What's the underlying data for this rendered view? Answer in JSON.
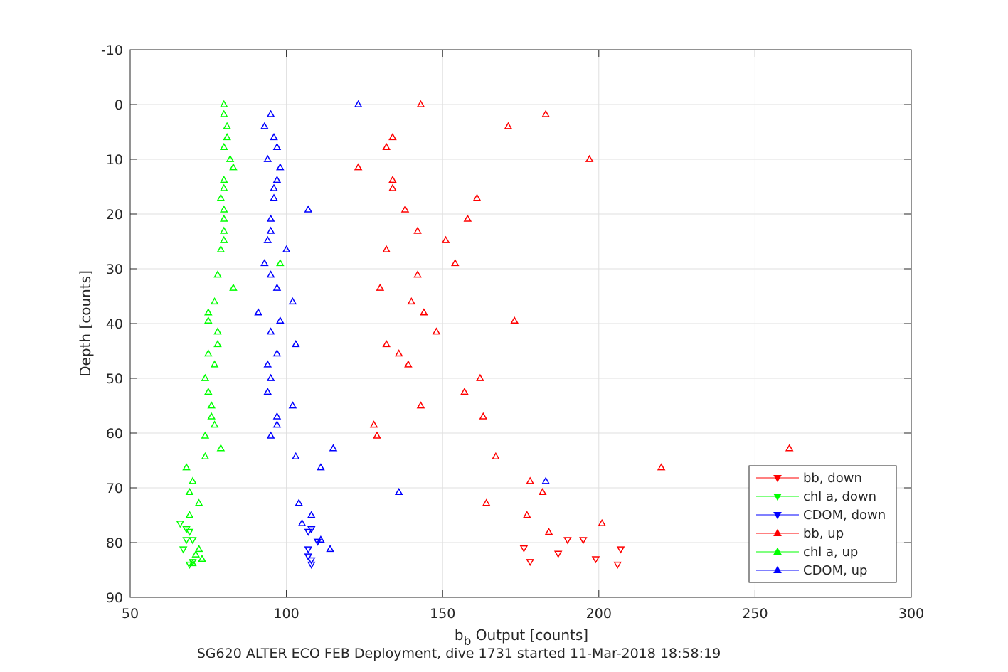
{
  "chart_data": {
    "type": "scatter",
    "title": "",
    "subtitle": "SG620 ALTER ECO FEB Deployment, dive 1731 started 11-Mar-2018 18:58:19",
    "xlabel": {
      "main": "b",
      "sub": "b",
      "rest": " Output [counts]"
    },
    "ylabel": "Depth [counts]",
    "xlim": [
      50,
      300
    ],
    "ylim": [
      -10,
      90
    ],
    "y_reversed": true,
    "grid": true,
    "legend_position": "bottom-right",
    "xticks": [
      50,
      100,
      150,
      200,
      250,
      300
    ],
    "xtick_labels": [
      "50",
      "100",
      "150",
      "200",
      "250",
      "300"
    ],
    "yticks": [
      -10,
      0,
      10,
      20,
      30,
      40,
      50,
      60,
      70,
      80,
      90
    ],
    "ytick_labels": [
      "-10",
      "0",
      "10",
      "20",
      "30",
      "40",
      "50",
      "60",
      "70",
      "80",
      "90"
    ],
    "series": [
      {
        "name": "bb, down",
        "color": "#ff0000",
        "marker": "triangle-down",
        "points": [
          [
            190,
            79.5
          ],
          [
            195,
            79.5
          ],
          [
            176,
            81
          ],
          [
            207,
            81.2
          ],
          [
            187,
            82
          ],
          [
            178,
            83.5
          ],
          [
            199,
            83
          ],
          [
            206,
            84
          ]
        ]
      },
      {
        "name": "chl a, down",
        "color": "#00ff00",
        "marker": "triangle-down",
        "points": [
          [
            66,
            76.5
          ],
          [
            68,
            77.5
          ],
          [
            69,
            78
          ],
          [
            68,
            79.5
          ],
          [
            70,
            79.5
          ],
          [
            67,
            81.2
          ],
          [
            70,
            83.5
          ],
          [
            69,
            84
          ]
        ]
      },
      {
        "name": "CDOM, down",
        "color": "#0000ff",
        "marker": "triangle-down",
        "points": [
          [
            108,
            77.5
          ],
          [
            107,
            78
          ],
          [
            110,
            79.8
          ],
          [
            107,
            81.2
          ],
          [
            107,
            82.5
          ],
          [
            108,
            83.2
          ],
          [
            108,
            84
          ]
        ]
      },
      {
        "name": "bb, up",
        "color": "#ff0000",
        "marker": "triangle-up",
        "points": [
          [
            143,
            0
          ],
          [
            183,
            1.8
          ],
          [
            171,
            4
          ],
          [
            134,
            6
          ],
          [
            132,
            7.8
          ],
          [
            197,
            10
          ],
          [
            123,
            11.5
          ],
          [
            134,
            13.8
          ],
          [
            134,
            15.3
          ],
          [
            161,
            17.1
          ],
          [
            138,
            19.2
          ],
          [
            158,
            20.9
          ],
          [
            142,
            23.1
          ],
          [
            151,
            24.8
          ],
          [
            132,
            26.5
          ],
          [
            154,
            29
          ],
          [
            142,
            31.1
          ],
          [
            130,
            33.5
          ],
          [
            140,
            36
          ],
          [
            144,
            38
          ],
          [
            173,
            39.5
          ],
          [
            148,
            41.5
          ],
          [
            132,
            43.8
          ],
          [
            136,
            45.5
          ],
          [
            139,
            47.5
          ],
          [
            162,
            50
          ],
          [
            157,
            52.5
          ],
          [
            143,
            55
          ],
          [
            163,
            57
          ],
          [
            128,
            58.5
          ],
          [
            129,
            60.5
          ],
          [
            261,
            62.8
          ],
          [
            167,
            64.3
          ],
          [
            220,
            66.3
          ],
          [
            178,
            68.8
          ],
          [
            182,
            70.8
          ],
          [
            164,
            72.8
          ],
          [
            177,
            75
          ],
          [
            201,
            76.5
          ],
          [
            184,
            78.1
          ]
        ]
      },
      {
        "name": "chl a, up",
        "color": "#00ff00",
        "marker": "triangle-up",
        "points": [
          [
            80,
            0
          ],
          [
            80,
            1.8
          ],
          [
            81,
            4
          ],
          [
            81,
            6
          ],
          [
            80,
            7.8
          ],
          [
            82,
            10
          ],
          [
            83,
            11.5
          ],
          [
            80,
            13.8
          ],
          [
            80,
            15.3
          ],
          [
            79,
            17.1
          ],
          [
            80,
            19.2
          ],
          [
            80,
            20.9
          ],
          [
            80,
            23.1
          ],
          [
            80,
            24.8
          ],
          [
            79,
            26.5
          ],
          [
            98,
            29
          ],
          [
            78,
            31.1
          ],
          [
            83,
            33.5
          ],
          [
            77,
            36
          ],
          [
            75,
            38
          ],
          [
            75,
            39.5
          ],
          [
            78,
            41.5
          ],
          [
            78,
            43.8
          ],
          [
            75,
            45.5
          ],
          [
            77,
            47.5
          ],
          [
            74,
            50
          ],
          [
            75,
            52.5
          ],
          [
            76,
            55
          ],
          [
            76,
            57
          ],
          [
            77,
            58.5
          ],
          [
            74,
            60.5
          ],
          [
            79,
            62.8
          ],
          [
            74,
            64.3
          ],
          [
            68,
            66.3
          ],
          [
            70,
            68.8
          ],
          [
            69,
            70.8
          ],
          [
            72,
            72.8
          ],
          [
            69,
            75
          ],
          [
            72,
            81.2
          ],
          [
            71,
            82.2
          ],
          [
            73,
            83
          ],
          [
            70,
            83.8
          ]
        ]
      },
      {
        "name": "CDOM, up",
        "color": "#0000ff",
        "marker": "triangle-up",
        "points": [
          [
            123,
            0
          ],
          [
            95,
            1.8
          ],
          [
            93,
            4
          ],
          [
            96,
            6
          ],
          [
            97,
            7.8
          ],
          [
            94,
            10
          ],
          [
            98,
            11.5
          ],
          [
            97,
            13.8
          ],
          [
            96,
            15.3
          ],
          [
            96,
            17.1
          ],
          [
            107,
            19.2
          ],
          [
            95,
            20.9
          ],
          [
            95,
            23.1
          ],
          [
            94,
            24.8
          ],
          [
            100,
            26.5
          ],
          [
            93,
            29
          ],
          [
            95,
            31.1
          ],
          [
            97,
            33.5
          ],
          [
            102,
            36
          ],
          [
            91,
            38
          ],
          [
            98,
            39.5
          ],
          [
            95,
            41.5
          ],
          [
            103,
            43.8
          ],
          [
            97,
            45.5
          ],
          [
            94,
            47.5
          ],
          [
            95,
            50
          ],
          [
            94,
            52.5
          ],
          [
            102,
            55
          ],
          [
            97,
            57
          ],
          [
            97,
            58.5
          ],
          [
            95,
            60.5
          ],
          [
            115,
            62.8
          ],
          [
            103,
            64.3
          ],
          [
            111,
            66.3
          ],
          [
            183,
            68.8
          ],
          [
            136,
            70.8
          ],
          [
            104,
            72.8
          ],
          [
            108,
            75
          ],
          [
            105,
            76.5
          ],
          [
            111,
            79.5
          ],
          [
            114,
            81.2
          ]
        ]
      }
    ]
  }
}
